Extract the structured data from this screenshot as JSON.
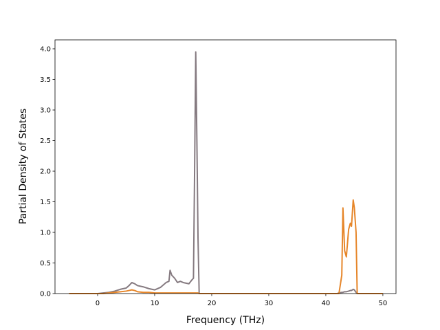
{
  "chart_data": {
    "type": "line",
    "xlabel": "Frequency (THz)",
    "ylabel": "Partial Density of States",
    "x": [
      -5,
      0,
      1,
      2,
      3,
      4,
      5,
      5.5,
      6,
      6.5,
      7,
      8,
      9,
      10,
      11,
      12,
      12.5,
      12.7,
      13,
      13.5,
      14,
      14.5,
      15,
      16,
      16.5,
      16.8,
      17,
      17.2,
      17.4,
      17.6,
      17.8,
      42,
      42.3,
      42.8,
      43,
      43.3,
      43.6,
      44,
      44.3,
      44.5,
      44.8,
      45,
      45.3,
      45.5,
      50
    ],
    "series": [
      {
        "color": "#857a80",
        "values": [
          0,
          0,
          0.01,
          0.02,
          0.04,
          0.07,
          0.09,
          0.13,
          0.18,
          0.16,
          0.13,
          0.11,
          0.08,
          0.06,
          0.1,
          0.18,
          0.2,
          0.38,
          0.3,
          0.25,
          0.18,
          0.2,
          0.18,
          0.16,
          0.22,
          0.25,
          2.0,
          3.95,
          2.5,
          0.9,
          0,
          0,
          0.01,
          0.02,
          0.02,
          0.03,
          0.03,
          0.04,
          0.05,
          0.05,
          0.07,
          0.06,
          0.02,
          0,
          0
        ]
      },
      {
        "color": "#e6862a",
        "values": [
          0,
          0,
          0,
          0.01,
          0.02,
          0.03,
          0.04,
          0.05,
          0.06,
          0.05,
          0.03,
          0.02,
          0.02,
          0.01,
          0.01,
          0.01,
          0.01,
          0.01,
          0.01,
          0.01,
          0.01,
          0.01,
          0.01,
          0.01,
          0.01,
          0.01,
          0.01,
          0.01,
          0.01,
          0.01,
          0,
          0,
          0,
          0.3,
          1.4,
          0.7,
          0.6,
          1.05,
          1.15,
          1.1,
          1.53,
          1.4,
          1.0,
          0,
          0
        ]
      }
    ],
    "xlim": [
      -7.47,
      52.3
    ],
    "xticks": [
      0,
      10,
      20,
      30,
      40,
      50
    ],
    "ylim": [
      0,
      4.146
    ],
    "yticks": [
      {
        "value": 0,
        "label": "0.0"
      },
      0.5,
      {
        "value": 1,
        "label": "1.0"
      },
      1.5,
      {
        "value": 2,
        "label": "2.0"
      },
      2.5,
      {
        "value": 3,
        "label": "3.0"
      },
      3.5,
      {
        "value": 4,
        "label": "4.0"
      }
    ]
  }
}
